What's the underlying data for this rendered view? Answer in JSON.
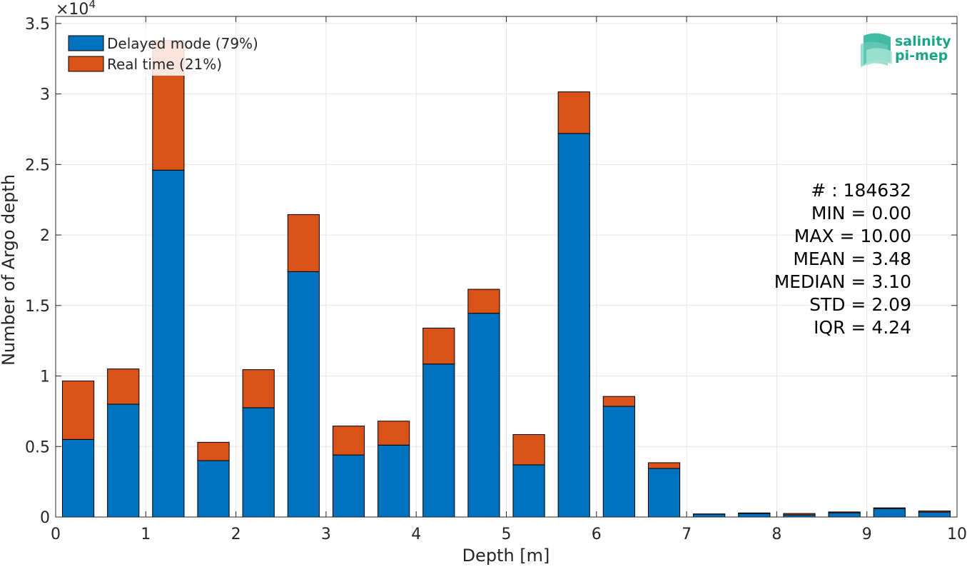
{
  "chart_data": {
    "type": "bar",
    "stacked": true,
    "xlabel": "Depth [m]",
    "ylabel": "Number of Argo depth",
    "y_multiplier_label": "×10",
    "y_multiplier_exponent": "4",
    "xlim": [
      0,
      10
    ],
    "ylim": [
      0,
      35500
    ],
    "x_ticks": [
      "0",
      "1",
      "2",
      "3",
      "4",
      "5",
      "6",
      "7",
      "8",
      "9",
      "10"
    ],
    "y_ticks": [
      "0",
      "0.5",
      "1",
      "1.5",
      "2",
      "2.5",
      "3",
      "3.5"
    ],
    "y_tick_values": [
      0,
      5000,
      10000,
      15000,
      20000,
      25000,
      30000,
      35000
    ],
    "grid": true,
    "legend_position": "top-left",
    "bin_width": 0.5,
    "bar_width": 0.35,
    "x": [
      0.25,
      0.75,
      1.25,
      1.75,
      2.25,
      2.75,
      3.25,
      3.75,
      4.25,
      4.75,
      5.25,
      5.75,
      6.25,
      6.75,
      7.25,
      7.75,
      8.25,
      8.75,
      9.25,
      9.75
    ],
    "series": [
      {
        "name": "Delayed mode (79%)",
        "color": "#0072bd",
        "values": [
          5500,
          8000,
          24600,
          4000,
          7750,
          17400,
          4400,
          5100,
          10850,
          14450,
          3700,
          27200,
          7850,
          3450,
          200,
          250,
          150,
          300,
          600,
          350
        ]
      },
      {
        "name": "Real time (21%)",
        "color": "#d95319",
        "values": [
          4150,
          2500,
          9200,
          1300,
          2700,
          4050,
          2050,
          1700,
          2550,
          1700,
          2150,
          2950,
          700,
          400,
          20,
          40,
          100,
          60,
          50,
          80
        ]
      }
    ],
    "stats": [
      "# : 184632",
      "MIN = 0.00",
      "MAX =  10.00",
      "MEAN = 3.48",
      "MEDIAN = 3.10",
      "STD = 2.09",
      "IQR = 4.24"
    ]
  },
  "logo": {
    "line1": "salinity",
    "line2": "pi-mep"
  },
  "colors": {
    "grid": "#e6e6e6",
    "axis": "#262626"
  }
}
